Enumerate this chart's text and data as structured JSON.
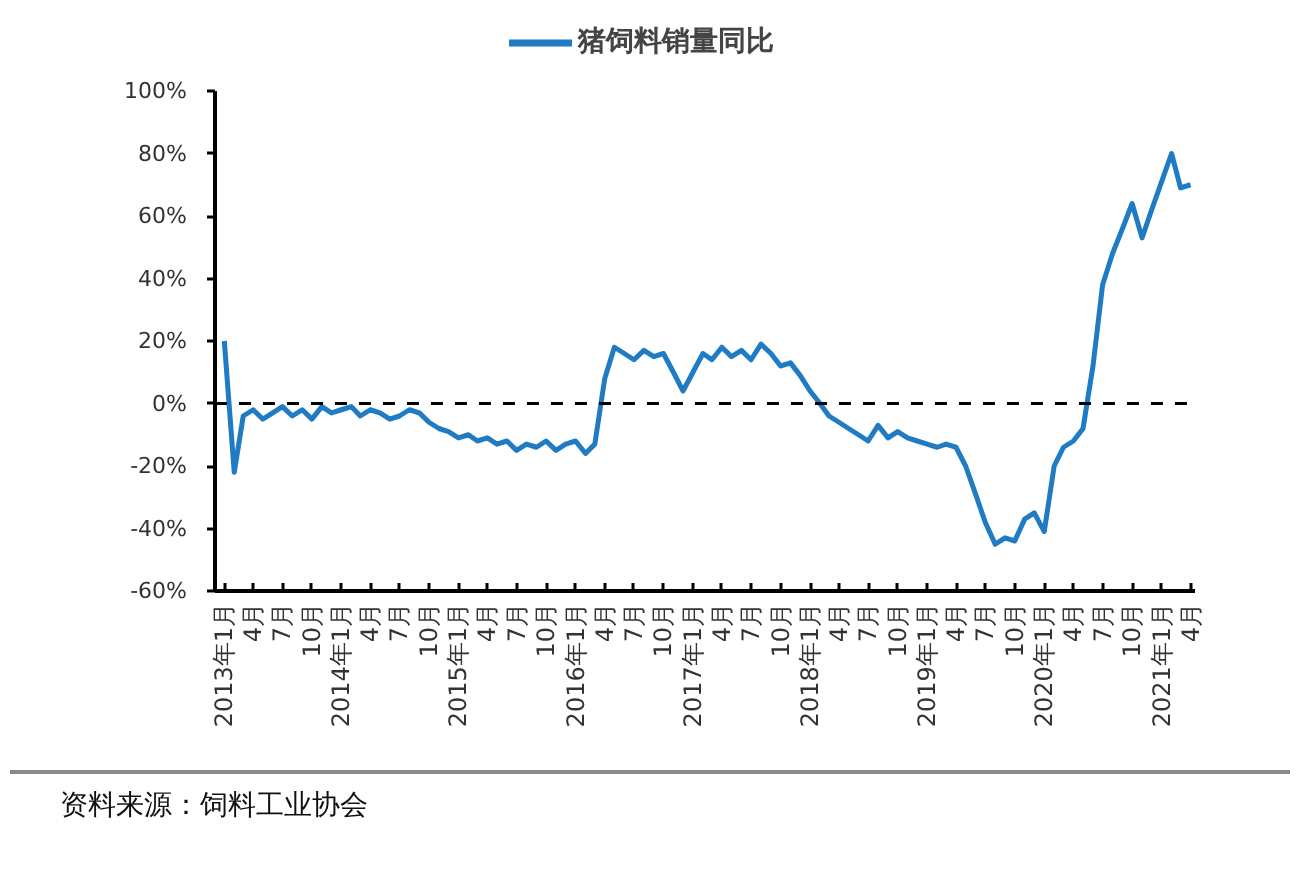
{
  "chart_data": {
    "type": "line",
    "x": [
      "2013-01",
      "2013-02",
      "2013-03",
      "2013-04",
      "2013-05",
      "2013-06",
      "2013-07",
      "2013-08",
      "2013-09",
      "2013-10",
      "2013-11",
      "2013-12",
      "2014-01",
      "2014-02",
      "2014-03",
      "2014-04",
      "2014-05",
      "2014-06",
      "2014-07",
      "2014-08",
      "2014-09",
      "2014-10",
      "2014-11",
      "2014-12",
      "2015-01",
      "2015-02",
      "2015-03",
      "2015-04",
      "2015-05",
      "2015-06",
      "2015-07",
      "2015-08",
      "2015-09",
      "2015-10",
      "2015-11",
      "2015-12",
      "2016-01",
      "2016-02",
      "2016-03",
      "2016-04",
      "2016-05",
      "2016-06",
      "2016-07",
      "2016-08",
      "2016-09",
      "2016-10",
      "2016-11",
      "2016-12",
      "2017-01",
      "2017-02",
      "2017-03",
      "2017-04",
      "2017-05",
      "2017-06",
      "2017-07",
      "2017-08",
      "2017-09",
      "2017-10",
      "2017-11",
      "2017-12",
      "2018-01",
      "2018-02",
      "2018-03",
      "2018-04",
      "2018-05",
      "2018-06",
      "2018-07",
      "2018-08",
      "2018-09",
      "2018-10",
      "2018-11",
      "2018-12",
      "2019-01",
      "2019-02",
      "2019-03",
      "2019-04",
      "2019-05",
      "2019-06",
      "2019-07",
      "2019-08",
      "2019-09",
      "2019-10",
      "2019-11",
      "2019-12",
      "2020-01",
      "2020-02",
      "2020-03",
      "2020-04",
      "2020-05",
      "2020-06",
      "2020-07",
      "2020-08",
      "2020-09",
      "2020-10",
      "2020-11",
      "2020-12",
      "2021-01",
      "2021-02",
      "2021-03",
      "2021-04"
    ],
    "series": [
      {
        "name": "猪饲料销量同比",
        "color": "#1f7bc4",
        "values": [
          20,
          -22,
          -4,
          -2,
          -5,
          -3,
          -1,
          -4,
          -2,
          -5,
          -1,
          -3,
          -2,
          -1,
          -4,
          -2,
          -3,
          -5,
          -4,
          -2,
          -3,
          -6,
          -8,
          -9,
          -11,
          -10,
          -12,
          -11,
          -13,
          -12,
          -15,
          -13,
          -14,
          -12,
          -15,
          -13,
          -12,
          -16,
          -13,
          8,
          18,
          16,
          14,
          17,
          15,
          16,
          10,
          4,
          10,
          16,
          14,
          18,
          15,
          17,
          14,
          19,
          16,
          12,
          13,
          9,
          4,
          0,
          -4,
          -6,
          -8,
          -10,
          -12,
          -7,
          -11,
          -9,
          -11,
          -12,
          -13,
          -14,
          -13,
          -14,
          -20,
          -29,
          -38,
          -45,
          -43,
          -44,
          -37,
          -35,
          -41,
          -20,
          -14,
          -12,
          -8,
          12,
          38,
          48,
          56,
          64,
          53,
          62,
          71,
          80,
          69,
          70
        ]
      }
    ],
    "xlim": [
      "2012-12-03",
      "2021-04-15"
    ],
    "xticks": [
      {
        "value": "2013-01",
        "label": "2013年1月"
      },
      {
        "value": "2013-04",
        "label": "4月"
      },
      {
        "value": "2013-07",
        "label": "7月"
      },
      {
        "value": "2013-10",
        "label": "10月"
      },
      {
        "value": "2014-01",
        "label": "2014年1月"
      },
      {
        "value": "2014-04",
        "label": "4月"
      },
      {
        "value": "2014-07",
        "label": "7月"
      },
      {
        "value": "2014-10",
        "label": "10月"
      },
      {
        "value": "2015-01",
        "label": "2015年1月"
      },
      {
        "value": "2015-04",
        "label": "4月"
      },
      {
        "value": "2015-07",
        "label": "7月"
      },
      {
        "value": "2015-10",
        "label": "10月"
      },
      {
        "value": "2016-01",
        "label": "2016年1月"
      },
      {
        "value": "2016-04",
        "label": "4月"
      },
      {
        "value": "2016-07",
        "label": "7月"
      },
      {
        "value": "2016-10",
        "label": "10月"
      },
      {
        "value": "2017-01",
        "label": "2017年1月"
      },
      {
        "value": "2017-04",
        "label": "4月"
      },
      {
        "value": "2017-07",
        "label": "7月"
      },
      {
        "value": "2017-10",
        "label": "10月"
      },
      {
        "value": "2018-01",
        "label": "2018年1月"
      },
      {
        "value": "2018-04",
        "label": "4月"
      },
      {
        "value": "2018-07",
        "label": "7月"
      },
      {
        "value": "2018-10",
        "label": "10月"
      },
      {
        "value": "2019-01",
        "label": "2019年1月"
      },
      {
        "value": "2019-04",
        "label": "4月"
      },
      {
        "value": "2019-07",
        "label": "7月"
      },
      {
        "value": "2019-10",
        "label": "10月"
      },
      {
        "value": "2020-01",
        "label": "2020年1月"
      },
      {
        "value": "2020-04",
        "label": "4月"
      },
      {
        "value": "2020-07",
        "label": "7月"
      },
      {
        "value": "2020-10",
        "label": "10月"
      },
      {
        "value": "2021-01",
        "label": "2021年1月"
      },
      {
        "value": "2021-04",
        "label": "4月"
      }
    ],
    "ylim": [
      -60,
      100
    ],
    "yticks": [
      {
        "value": -60,
        "label": "-60%"
      },
      {
        "value": -40,
        "label": "-40%"
      },
      {
        "value": -20,
        "label": "-20%"
      },
      {
        "value": 0,
        "label": "0%"
      },
      {
        "value": 20,
        "label": "20%"
      },
      {
        "value": 40,
        "label": "40%"
      },
      {
        "value": 60,
        "label": "60%"
      },
      {
        "value": 80,
        "label": "80%"
      },
      {
        "value": 100,
        "label": "100%"
      }
    ],
    "ref_lines": [
      {
        "axis": "y",
        "value": 0,
        "color": "#000000",
        "line_style": "dashed"
      }
    ],
    "grid": false,
    "legend": "top",
    "line_style": "solid",
    "annotations": [
      "资料来源：饲料工业协会"
    ]
  }
}
